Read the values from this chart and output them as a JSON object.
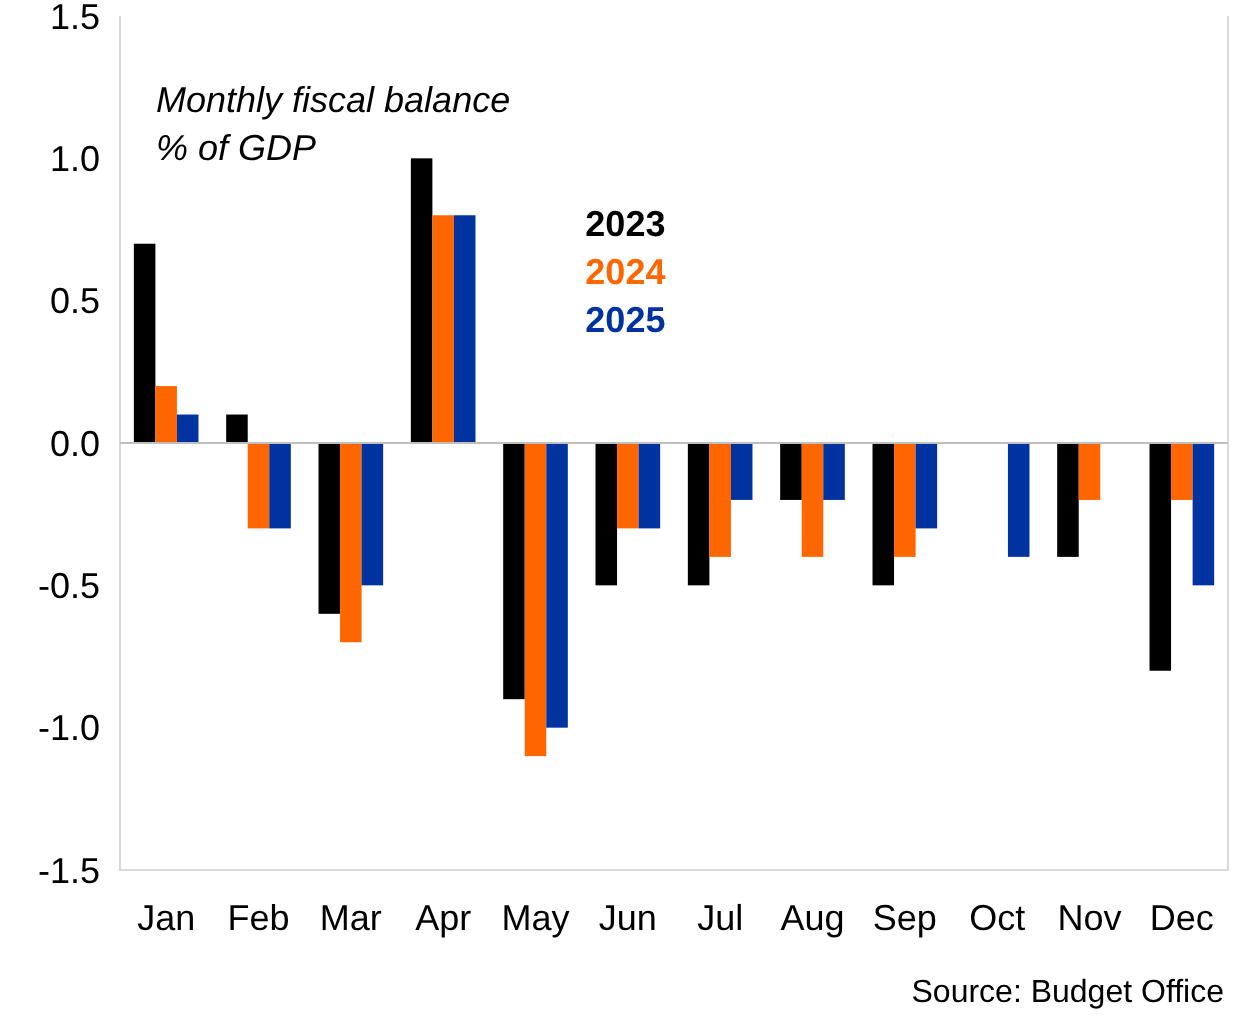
{
  "chart_data": {
    "type": "bar",
    "title": "Monthly fiscal balance",
    "subtitle": "% of GDP",
    "categories": [
      "Jan",
      "Feb",
      "Mar",
      "Apr",
      "May",
      "Jun",
      "Jul",
      "Aug",
      "Sep",
      "Oct",
      "Nov",
      "Dec"
    ],
    "series": [
      {
        "name": "2023",
        "color": "#000000",
        "values": [
          0.7,
          0.1,
          -0.6,
          1.0,
          -0.9,
          -0.5,
          -0.5,
          -0.2,
          -0.5,
          0,
          -0.4,
          -0.8
        ]
      },
      {
        "name": "2024",
        "color": "#ff6600",
        "values": [
          0.2,
          -0.3,
          -0.7,
          0.8,
          -1.1,
          -0.3,
          -0.4,
          -0.4,
          -0.4,
          0,
          -0.2,
          -0.2
        ]
      },
      {
        "name": "2025",
        "color": "#0033a0",
        "values": [
          0.1,
          -0.3,
          -0.5,
          0.8,
          -1.0,
          -0.3,
          -0.2,
          -0.2,
          -0.3,
          -0.4,
          null,
          -0.5
        ]
      }
    ],
    "ylim": [
      -1.5,
      1.5
    ],
    "yticks": [
      {
        "value": -1.5,
        "label": "-1.5"
      },
      {
        "value": -1,
        "label": "-1.0"
      },
      {
        "value": -0.5,
        "label": "-0.5"
      },
      {
        "value": 0,
        "label": "0.0"
      },
      {
        "value": 0.5,
        "label": "0.5"
      },
      {
        "value": 1,
        "label": "1.0"
      },
      {
        "value": 1.5,
        "label": "1.5"
      }
    ],
    "legend": "top",
    "annotations": [
      "Source: Budget Office"
    ]
  }
}
